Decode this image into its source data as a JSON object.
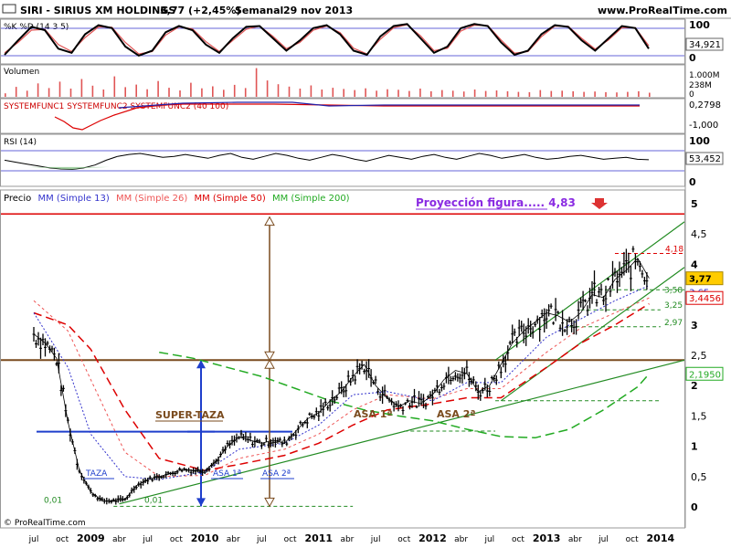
{
  "header": {
    "ticker": "SIRI - SIRIUS XM HOLDINGS",
    "price_change": "3,77 (+2,45%)",
    "period": "Semanal",
    "date": "29 nov 2013",
    "site": "www.ProRealTime.com"
  },
  "footer": {
    "copyright": "© ProRealTime.com"
  },
  "colors": {
    "price": "#000000",
    "mm13": "#3333cc",
    "mm26": "#ee5555",
    "mm50": "#dd0000",
    "mm200": "#22aa22",
    "ref_line": "#7a4b1e",
    "projection_text": "#8a2be2",
    "projection_line": "#dd0000",
    "volume": "#e05555",
    "stoch_k": "#000000",
    "stoch_d": "#e05555",
    "rsi_fill": "#7fbf7f",
    "current_price_bg": "#ffcc00"
  },
  "chart_data": [
    {
      "type": "line",
      "panel": "stochastic",
      "title": "%K %D (14 3 5)",
      "ylim": [
        0,
        100
      ],
      "tick_labels": [
        "100",
        "0"
      ],
      "current_value": 34.921,
      "current_value_label": "34,921",
      "series": [
        {
          "name": "%K",
          "values": [
            20,
            55,
            88,
            80,
            35,
            25,
            70,
            92,
            85,
            40,
            18,
            30,
            75,
            90,
            80,
            45,
            25,
            60,
            88,
            90,
            60,
            30,
            55,
            85,
            92,
            70,
            30,
            20,
            65,
            90,
            95,
            60,
            25,
            40,
            85,
            95,
            90,
            50,
            20,
            30,
            70,
            92,
            88,
            55,
            30,
            60,
            90,
            85,
            35
          ]
        },
        {
          "name": "%D",
          "values": [
            25,
            50,
            80,
            82,
            45,
            28,
            62,
            88,
            87,
            50,
            22,
            28,
            68,
            88,
            83,
            52,
            28,
            55,
            82,
            90,
            65,
            35,
            50,
            80,
            90,
            74,
            36,
            22,
            58,
            86,
            93,
            66,
            30,
            36,
            78,
            92,
            91,
            56,
            24,
            28,
            64,
            90,
            89,
            60,
            34,
            56,
            86,
            86,
            42
          ]
        }
      ]
    },
    {
      "type": "bar",
      "panel": "volume",
      "title": "Volumen",
      "tick_labels": [
        "1.000M",
        "238M",
        "0"
      ],
      "current_value_label": "238M",
      "values": [
        120,
        340,
        210,
        460,
        300,
        520,
        280,
        610,
        380,
        250,
        700,
        330,
        420,
        260,
        540,
        310,
        220,
        480,
        290,
        360,
        240,
        410,
        300,
        980,
        560,
        430,
        350,
        280,
        390,
        250,
        310,
        270,
        230,
        290,
        210,
        260,
        240,
        200,
        280,
        190,
        230,
        210,
        180,
        250,
        200,
        220,
        190,
        170,
        160,
        230,
        200,
        210,
        190,
        170,
        180,
        160,
        150,
        170,
        190,
        140
      ]
    },
    {
      "type": "line",
      "panel": "systemfunc",
      "title": "SYSTEMFUNC1 SYSTEMFUNC2 SYSTEMFUNC2 (40 100)",
      "tick_labels": [
        "0,2798",
        "-1,000"
      ],
      "current_value_label": "0,2798"
    },
    {
      "type": "line",
      "panel": "rsi",
      "title": "RSI (14)",
      "ylim": [
        0,
        100
      ],
      "tick_labels": [
        "100",
        "0"
      ],
      "current_value": 53.452,
      "current_value_label": "53,452",
      "values": [
        52,
        48,
        44,
        40,
        36,
        34,
        33,
        36,
        42,
        52,
        60,
        64,
        66,
        62,
        58,
        60,
        64,
        60,
        56,
        62,
        66,
        58,
        54,
        60,
        66,
        62,
        56,
        52,
        58,
        64,
        60,
        54,
        50,
        56,
        62,
        58,
        54,
        60,
        64,
        58,
        54,
        60,
        66,
        62,
        56,
        60,
        64,
        58,
        54,
        56,
        60,
        62,
        58,
        54,
        56,
        58,
        54,
        53
      ]
    },
    {
      "type": "line",
      "panel": "price",
      "title": "Precio",
      "legend": [
        "MM (Simple 13)",
        "MM (Simple 26)",
        "MM (Simple 50)",
        "MM (Simple 200)"
      ],
      "ylim": [
        0,
        5
      ],
      "yticks": [
        "0",
        "0,5",
        "1",
        "1,5",
        "2",
        "2,5",
        "3",
        "3,5",
        "4",
        "4,5",
        "5"
      ],
      "xticks": [
        "jul",
        "oct",
        "2009",
        "abr",
        "jul",
        "oct",
        "2010",
        "abr",
        "jul",
        "oct",
        "2011",
        "abr",
        "jul",
        "oct",
        "2012",
        "abr",
        "jul",
        "oct",
        "2013",
        "abr",
        "jul",
        "oct",
        "2014"
      ],
      "annotation": "Proyección figura..... 4,83",
      "projection_value": 4.83,
      "level_labels": [
        "4,18",
        "3,58",
        "3,25",
        "2,97",
        "0,01",
        "0,01"
      ],
      "pattern_labels": [
        "SUPER-TAZA",
        "TAZA",
        "ASA 1ª",
        "ASA 2ª",
        "ASA 1ª",
        "ASA 2ª"
      ],
      "price_labels": {
        "last": "3,77",
        "mm13": "3,65",
        "mm26": "3,4456",
        "mm200": "2,1950"
      },
      "series": [
        {
          "name": "Precio",
          "x": [
            2008.5,
            2008.6,
            2008.7,
            2008.8,
            2008.9,
            2009.0,
            2009.1,
            2009.2,
            2009.3,
            2009.4,
            2009.5,
            2009.6,
            2009.7,
            2009.8,
            2009.9,
            2010.0,
            2010.1,
            2010.2,
            2010.3,
            2010.4,
            2010.5,
            2010.6,
            2010.7,
            2010.8,
            2010.9,
            2011.0,
            2011.1,
            2011.2,
            2011.3,
            2011.4,
            2011.5,
            2011.6,
            2011.7,
            2011.8,
            2011.9,
            2012.0,
            2012.1,
            2012.2,
            2012.3,
            2012.4,
            2012.5,
            2012.6,
            2012.7,
            2012.8,
            2012.9,
            2013.0,
            2013.1,
            2013.2,
            2013.3,
            2013.4,
            2013.5,
            2013.6,
            2013.7,
            2013.8,
            2013.9
          ],
          "values": [
            2.85,
            2.7,
            2.45,
            1.4,
            0.6,
            0.25,
            0.1,
            0.1,
            0.12,
            0.35,
            0.45,
            0.5,
            0.55,
            0.62,
            0.6,
            0.6,
            0.75,
            1.0,
            1.15,
            1.1,
            1.05,
            1.1,
            1.05,
            1.25,
            1.45,
            1.55,
            1.75,
            1.9,
            2.15,
            2.35,
            2.0,
            1.8,
            1.65,
            1.75,
            1.7,
            1.85,
            2.1,
            2.25,
            2.2,
            1.9,
            2.0,
            2.35,
            2.7,
            2.9,
            3.05,
            3.2,
            3.15,
            3.05,
            3.2,
            3.5,
            3.45,
            3.75,
            3.9,
            4.1,
            3.77
          ]
        },
        {
          "name": "MM (Simple 13)",
          "x": [
            2008.5,
            2008.8,
            2009.0,
            2009.3,
            2009.6,
            2010.0,
            2010.3,
            2010.7,
            2011.0,
            2011.3,
            2011.6,
            2012.0,
            2012.3,
            2012.6,
            2013.0,
            2013.3,
            2013.6,
            2013.9
          ],
          "values": [
            3.2,
            2.3,
            1.2,
            0.5,
            0.45,
            0.58,
            0.95,
            1.05,
            1.35,
            1.85,
            1.9,
            1.75,
            2.05,
            2.05,
            2.8,
            3.1,
            3.4,
            3.65
          ]
        },
        {
          "name": "MM (Simple 26)",
          "x": [
            2008.5,
            2008.8,
            2009.0,
            2009.3,
            2009.6,
            2010.0,
            2010.3,
            2010.7,
            2011.0,
            2011.3,
            2011.6,
            2012.0,
            2012.3,
            2012.6,
            2013.0,
            2013.3,
            2013.6,
            2013.9
          ],
          "values": [
            3.4,
            2.9,
            2.1,
            0.9,
            0.5,
            0.52,
            0.8,
            0.95,
            1.2,
            1.6,
            1.85,
            1.78,
            1.95,
            1.95,
            2.55,
            2.95,
            3.2,
            3.4456
          ]
        },
        {
          "name": "MM (Simple 50)",
          "x": [
            2008.5,
            2008.8,
            2009.0,
            2009.3,
            2009.6,
            2010.0,
            2010.3,
            2010.7,
            2011.0,
            2011.3,
            2011.6,
            2012.0,
            2012.3,
            2012.6,
            2013.0,
            2013.3,
            2013.6,
            2013.9
          ],
          "values": [
            3.2,
            3.0,
            2.6,
            1.6,
            0.8,
            0.6,
            0.7,
            0.85,
            1.05,
            1.35,
            1.6,
            1.7,
            1.8,
            1.8,
            2.3,
            2.7,
            3.0,
            3.35
          ]
        },
        {
          "name": "MM (Simple 200)",
          "x": [
            2009.6,
            2009.9,
            2010.2,
            2010.5,
            2010.8,
            2011.1,
            2011.4,
            2011.7,
            2012.0,
            2012.3,
            2012.6,
            2012.9,
            2013.2,
            2013.5,
            2013.8,
            2013.9
          ],
          "values": [
            2.55,
            2.45,
            2.3,
            2.15,
            1.95,
            1.75,
            1.6,
            1.5,
            1.42,
            1.28,
            1.16,
            1.14,
            1.28,
            1.6,
            1.98,
            2.195
          ]
        }
      ]
    }
  ]
}
